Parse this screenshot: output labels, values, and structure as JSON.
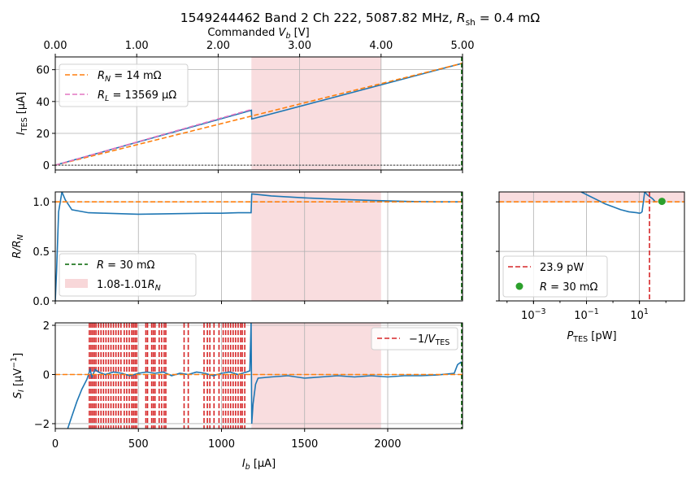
{
  "title": {
    "prefix": "1549244462 Band 2 Ch 222, 5087.82 MHz, ",
    "rsh_symbol": "R",
    "rsh_sub": "sh",
    "rsh_suffix": " = 0.4 mΩ"
  },
  "colors": {
    "data_line": "#1f77b4",
    "rn_fit": "#ff7f0e",
    "rl_fit": "#e377c2",
    "threshold_r": "#006400",
    "band_fill": "#f3bcc0",
    "vtes_line": "#d62728",
    "point": "#2ca02c",
    "grid": "#b0b0b0"
  },
  "chart_data": [
    {
      "type": "line",
      "panel": "I_TES vs V_b",
      "top_axis": {
        "label_prefix": "Commanded ",
        "label_var": "V",
        "label_sub": "b",
        "label_suffix": " [V]",
        "ticks": [
          "0.00",
          "1.00",
          "2.00",
          "3.00",
          "4.00",
          "5.00"
        ],
        "range": [
          0,
          5
        ]
      },
      "xlim": [
        0,
        2450
      ],
      "ylim": [
        -3,
        68
      ],
      "yticks": [
        0,
        20,
        40,
        60
      ],
      "ylabel": {
        "var": "I",
        "sub": "TES",
        "suffix": " [μA]"
      },
      "series": [
        {
          "role": "data",
          "x": [
            0,
            1180,
            1182,
            2450
          ],
          "y": [
            0,
            34.5,
            29,
            64
          ]
        },
        {
          "role": "rn_fit",
          "name_var": "R",
          "name_sub": "N",
          "name_suffix": "  = 14 mΩ",
          "x": [
            0,
            2450
          ],
          "y": [
            0,
            64
          ]
        },
        {
          "role": "rl_fit",
          "name_var": "R",
          "name_sub": "L",
          "name_suffix": " = 13569 μΩ",
          "x": [
            0,
            1180
          ],
          "y": [
            0,
            35
          ]
        },
        {
          "role": "zero_line",
          "x": [
            0,
            2450
          ],
          "y": [
            0,
            0
          ]
        }
      ],
      "band": [
        1180,
        1960
      ]
    },
    {
      "type": "line",
      "panel": "R/R_N vs I_b",
      "xlim": [
        0,
        2450
      ],
      "ylim": [
        0,
        1.1
      ],
      "yticks": [
        "0.0",
        "0.5",
        "1.0"
      ],
      "ylabel": {
        "text": "R/R",
        "sub": "N"
      },
      "series": [
        {
          "role": "data",
          "x": [
            0,
            8,
            20,
            40,
            60,
            100,
            200,
            300,
            400,
            500,
            700,
            900,
            1000,
            1100,
            1178,
            1182,
            1300,
            1500,
            1700,
            1900,
            2100,
            2300,
            2440,
            2450
          ],
          "y": [
            0,
            0.3,
            0.9,
            1.1,
            1.02,
            0.92,
            0.89,
            0.885,
            0.88,
            0.875,
            0.88,
            0.885,
            0.885,
            0.89,
            0.89,
            1.08,
            1.06,
            1.04,
            1.025,
            1.015,
            1.005,
            1.0,
            1.0,
            1.0
          ]
        },
        {
          "role": "rn_line",
          "x": [
            0,
            2450
          ],
          "y": [
            1,
            1
          ]
        }
      ],
      "band": [
        1180,
        1960
      ],
      "legend": [
        {
          "kind": "line",
          "role": "threshold_r",
          "label_var": "R",
          "label_text": " = 30 mΩ"
        },
        {
          "kind": "patch",
          "role": "band",
          "label_text": "1.08-1.01",
          "label_var": "R",
          "label_sub": "N"
        }
      ]
    },
    {
      "type": "line",
      "panel": "R/R_N vs P_TES",
      "xscale": "log",
      "xlim_log10": [
        -4.3,
        2.7
      ],
      "xticks": [
        {
          "base": "10",
          "exp": "−3"
        },
        {
          "base": "10",
          "exp": "−1"
        },
        {
          "base": "10",
          "exp": "1"
        }
      ],
      "xlabel": {
        "var": "P",
        "sub": "TES",
        "suffix": " [pW]"
      },
      "ylim": [
        0,
        1.1
      ],
      "series": [
        {
          "role": "data",
          "log10x": [
            -1.2,
            -0.9,
            -0.6,
            -0.3,
            0.0,
            0.3,
            0.6,
            0.9,
            1.0,
            1.05,
            1.1,
            1.15,
            1.2,
            1.3,
            1.5,
            1.6
          ],
          "y": [
            1.1,
            1.06,
            1.02,
            0.98,
            0.95,
            0.92,
            0.9,
            0.89,
            0.885,
            0.888,
            0.9,
            1.0,
            1.1,
            1.07,
            1.03,
            1.0
          ]
        },
        {
          "role": "rn_line",
          "log10x": [
            -4.3,
            2.7
          ],
          "y": [
            1,
            1
          ]
        }
      ],
      "band_y": [
        1.0,
        1.1
      ],
      "vline_log10x": 1.38,
      "point": {
        "log10x": 1.85,
        "y": 1.005
      },
      "legend": [
        {
          "kind": "line",
          "role": "vtes_line",
          "label_text": "23.9 pW"
        },
        {
          "kind": "dot",
          "role": "point",
          "label_var": "R",
          "label_text": " = 30 mΩ"
        }
      ]
    },
    {
      "type": "line",
      "panel": "S_I vs I_b",
      "xlim": [
        0,
        2450
      ],
      "xticks": [
        0,
        500,
        1000,
        1500,
        2000
      ],
      "xlabel": {
        "var": "I",
        "sub": "b",
        "suffix": " [μA]"
      },
      "ylim": [
        -2.2,
        2.1
      ],
      "yticks": [
        {
          "v": -2,
          "t": "−2"
        },
        {
          "v": 0,
          "t": "0"
        },
        {
          "v": 2,
          "t": "2"
        }
      ],
      "ylabel": {
        "var": "S",
        "sub": "I",
        "suffix": " [μV",
        "sup": "−1",
        "close": "]"
      },
      "series": [
        {
          "role": "data",
          "x": [
            75,
            100,
            130,
            160,
            190,
            200,
            210,
            220,
            240,
            260,
            300,
            350,
            400,
            450,
            500,
            550,
            600,
            650,
            700,
            750,
            800,
            850,
            900,
            950,
            1000,
            1050,
            1100,
            1150,
            1170,
            1178,
            1182,
            1190,
            1205,
            1220,
            1300,
            1400,
            1500,
            1600,
            1700,
            1800,
            1900,
            2000,
            2100,
            2200,
            2300,
            2400,
            2420,
            2440,
            2450
          ],
          "y": [
            -2.2,
            -1.7,
            -1.1,
            -0.6,
            -0.2,
            0.0,
            0.2,
            -0.1,
            0.2,
            0.1,
            0.0,
            0.1,
            0.05,
            -0.05,
            0.05,
            0.1,
            0.05,
            0.1,
            -0.05,
            0.05,
            0.0,
            0.1,
            0.05,
            -0.05,
            0.05,
            0.1,
            0.0,
            0.1,
            0.15,
            2.1,
            -2.0,
            -1.2,
            -0.4,
            -0.15,
            -0.1,
            -0.05,
            -0.15,
            -0.1,
            -0.05,
            -0.1,
            -0.05,
            -0.1,
            -0.05,
            -0.05,
            -0.02,
            0.05,
            0.4,
            0.5,
            0.3
          ]
        },
        {
          "role": "zero_line",
          "x": [
            0,
            2450
          ],
          "y": [
            0,
            0
          ]
        }
      ],
      "band": [
        1180,
        1960
      ],
      "vtes_lines_x": [
        205,
        215,
        225,
        235,
        245,
        260,
        275,
        290,
        305,
        320,
        335,
        350,
        365,
        380,
        395,
        415,
        430,
        445,
        460,
        470,
        480,
        490,
        545,
        555,
        580,
        590,
        600,
        625,
        640,
        655,
        665,
        775,
        800,
        895,
        915,
        930,
        955,
        985,
        1010,
        1025,
        1040,
        1055,
        1070,
        1085,
        1100,
        1115,
        1125,
        1140
      ],
      "legend": [
        {
          "kind": "line",
          "role": "vtes_line",
          "label_text": "−1/",
          "label_var": "V",
          "label_sub": "TES"
        }
      ]
    }
  ]
}
